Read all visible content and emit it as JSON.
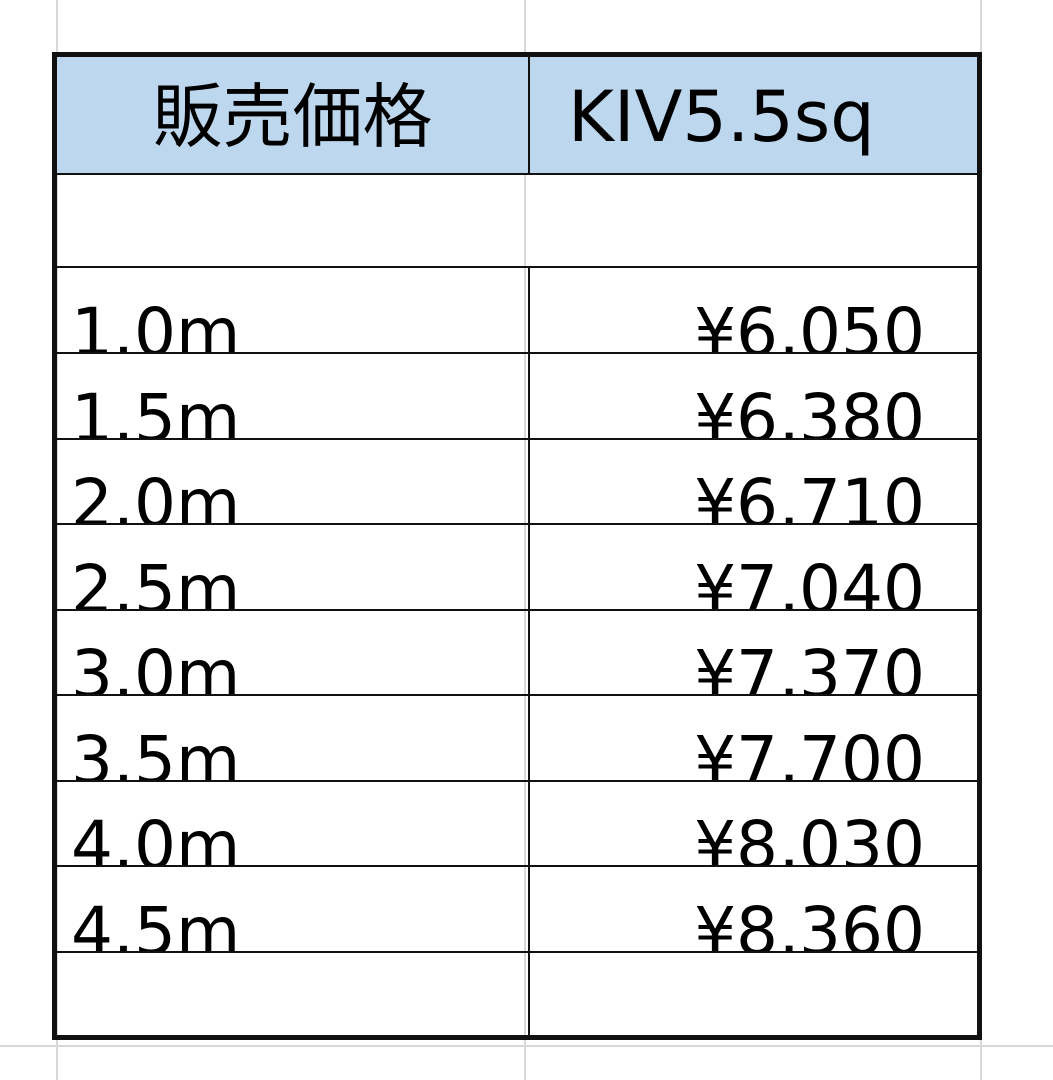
{
  "table": {
    "header": {
      "label": "販売価格",
      "product": "KIV5.5sq"
    },
    "rows": [
      {
        "length": "1.0m",
        "price": "¥6,050"
      },
      {
        "length": "1.5m",
        "price": "¥6,380"
      },
      {
        "length": "2.0m",
        "price": "¥6,710"
      },
      {
        "length": "2.5m",
        "price": "¥7,040"
      },
      {
        "length": "3.0m",
        "price": "¥7,370"
      },
      {
        "length": "3.5m",
        "price": "¥7,700"
      },
      {
        "length": "4.0m",
        "price": "¥8,030"
      },
      {
        "length": "4.5m",
        "price": "¥8,360"
      }
    ]
  },
  "colors": {
    "header_bg": "#bdd7ee",
    "border": "#111111",
    "gridline": "#d8d8d8"
  }
}
